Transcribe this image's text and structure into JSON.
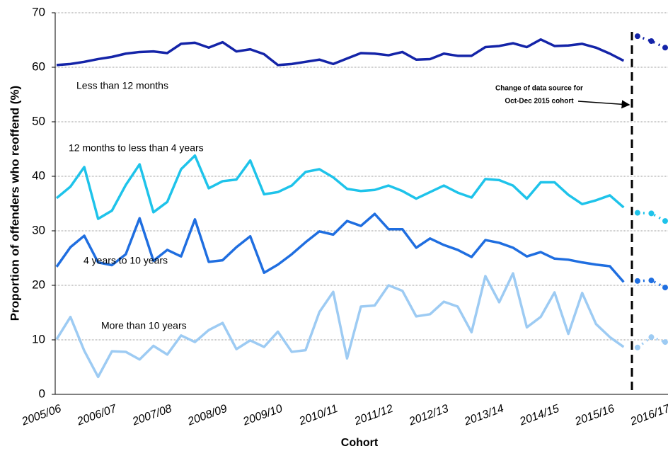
{
  "chart_data": {
    "type": "line",
    "y_label": "Proportion of offenders who reoffend (%)",
    "x_label": "Cohort",
    "annotation": [
      "Change of data source for",
      "Oct-Dec 2015 cohort"
    ],
    "categories": [
      "2005/06",
      null,
      null,
      null,
      "2006/07",
      null,
      null,
      null,
      "2007/08",
      null,
      null,
      null,
      "2008/09",
      null,
      null,
      null,
      "2009/10",
      null,
      null,
      null,
      "2010/11",
      null,
      null,
      null,
      "2011/12",
      null,
      null,
      null,
      "2012/13",
      null,
      null,
      null,
      "2013/14",
      null,
      null,
      null,
      "2014/15",
      null,
      null,
      null,
      "2015/16",
      null,
      null,
      null,
      "2016/17"
    ],
    "ylim": [
      0,
      70
    ],
    "yticks": [
      0,
      10,
      20,
      30,
      40,
      50,
      60,
      70
    ],
    "grid": true,
    "series": [
      {
        "name": "Less than 12 months",
        "color": "#1424a8",
        "values": [
          60.4,
          60.6,
          61.0,
          61.5,
          61.9,
          62.5,
          62.8,
          62.9,
          62.6,
          64.3,
          64.5,
          63.6,
          64.6,
          62.9,
          63.3,
          62.4,
          60.4,
          60.6,
          61.0,
          61.4,
          60.6,
          61.6,
          62.6,
          62.5,
          62.2,
          62.8,
          61.4,
          61.5,
          62.5,
          62.1,
          62.1,
          63.7,
          63.9,
          64.4,
          63.7,
          65.1,
          63.9,
          64.0,
          64.3,
          63.6,
          62.5,
          61.2,
          null,
          null,
          null
        ],
        "values_dotted": [
          null,
          null,
          null,
          null,
          null,
          null,
          null,
          null,
          null,
          null,
          null,
          null,
          null,
          null,
          null,
          null,
          null,
          null,
          null,
          null,
          null,
          null,
          null,
          null,
          null,
          null,
          null,
          null,
          null,
          null,
          null,
          null,
          null,
          null,
          null,
          null,
          null,
          null,
          null,
          null,
          null,
          null,
          65.7,
          64.8,
          63.6
        ]
      },
      {
        "name": "12 months to less than 4 years",
        "color": "#1ec3ea",
        "values": [
          36.0,
          38.1,
          41.7,
          32.2,
          33.7,
          38.4,
          42.2,
          33.4,
          35.3,
          41.3,
          43.8,
          37.8,
          39.1,
          39.4,
          42.9,
          36.7,
          37.1,
          38.3,
          40.8,
          41.3,
          39.8,
          37.7,
          37.3,
          37.5,
          38.3,
          37.3,
          35.9,
          37.1,
          38.3,
          37.0,
          36.1,
          39.5,
          39.3,
          38.3,
          35.9,
          38.9,
          38.9,
          36.6,
          34.9,
          35.6,
          36.5,
          34.3,
          null,
          null,
          null
        ],
        "values_dotted": [
          null,
          null,
          null,
          null,
          null,
          null,
          null,
          null,
          null,
          null,
          null,
          null,
          null,
          null,
          null,
          null,
          null,
          null,
          null,
          null,
          null,
          null,
          null,
          null,
          null,
          null,
          null,
          null,
          null,
          null,
          null,
          null,
          null,
          null,
          null,
          null,
          null,
          null,
          null,
          null,
          null,
          null,
          33.3,
          33.2,
          31.8
        ]
      },
      {
        "name": "4 years to 10 years",
        "color": "#1f6ee0",
        "values": [
          23.4,
          27.0,
          29.1,
          24.2,
          23.7,
          25.7,
          32.3,
          24.5,
          26.5,
          25.3,
          32.1,
          24.3,
          24.6,
          27.0,
          29.0,
          22.3,
          23.8,
          25.7,
          27.9,
          29.9,
          29.3,
          31.8,
          30.9,
          33.1,
          30.3,
          30.3,
          26.9,
          28.6,
          27.4,
          26.5,
          25.2,
          28.3,
          27.8,
          26.9,
          25.3,
          26.1,
          24.9,
          24.7,
          24.2,
          23.8,
          23.5,
          20.6,
          null,
          null,
          null
        ],
        "values_dotted": [
          null,
          null,
          null,
          null,
          null,
          null,
          null,
          null,
          null,
          null,
          null,
          null,
          null,
          null,
          null,
          null,
          null,
          null,
          null,
          null,
          null,
          null,
          null,
          null,
          null,
          null,
          null,
          null,
          null,
          null,
          null,
          null,
          null,
          null,
          null,
          null,
          null,
          null,
          null,
          null,
          null,
          null,
          20.8,
          20.9,
          19.6
        ]
      },
      {
        "name": "More than 10 years",
        "color": "#9dcbf3",
        "values": [
          10.1,
          14.2,
          8.0,
          3.2,
          7.9,
          7.8,
          6.4,
          8.9,
          7.3,
          10.8,
          9.6,
          11.8,
          13.1,
          8.3,
          9.9,
          8.7,
          11.5,
          7.8,
          8.1,
          15.1,
          18.8,
          6.6,
          16.1,
          16.3,
          20.0,
          19.0,
          14.3,
          14.7,
          17.0,
          16.1,
          11.4,
          21.7,
          16.9,
          22.2,
          12.3,
          14.2,
          18.7,
          11.1,
          18.6,
          12.9,
          10.5,
          8.7,
          null,
          null,
          null
        ],
        "values_dotted": [
          null,
          null,
          null,
          null,
          null,
          null,
          null,
          null,
          null,
          null,
          null,
          null,
          null,
          null,
          null,
          null,
          null,
          null,
          null,
          null,
          null,
          null,
          null,
          null,
          null,
          null,
          null,
          null,
          null,
          null,
          null,
          null,
          null,
          null,
          null,
          null,
          null,
          null,
          null,
          null,
          null,
          null,
          8.6,
          10.5,
          9.6
        ]
      }
    ]
  }
}
